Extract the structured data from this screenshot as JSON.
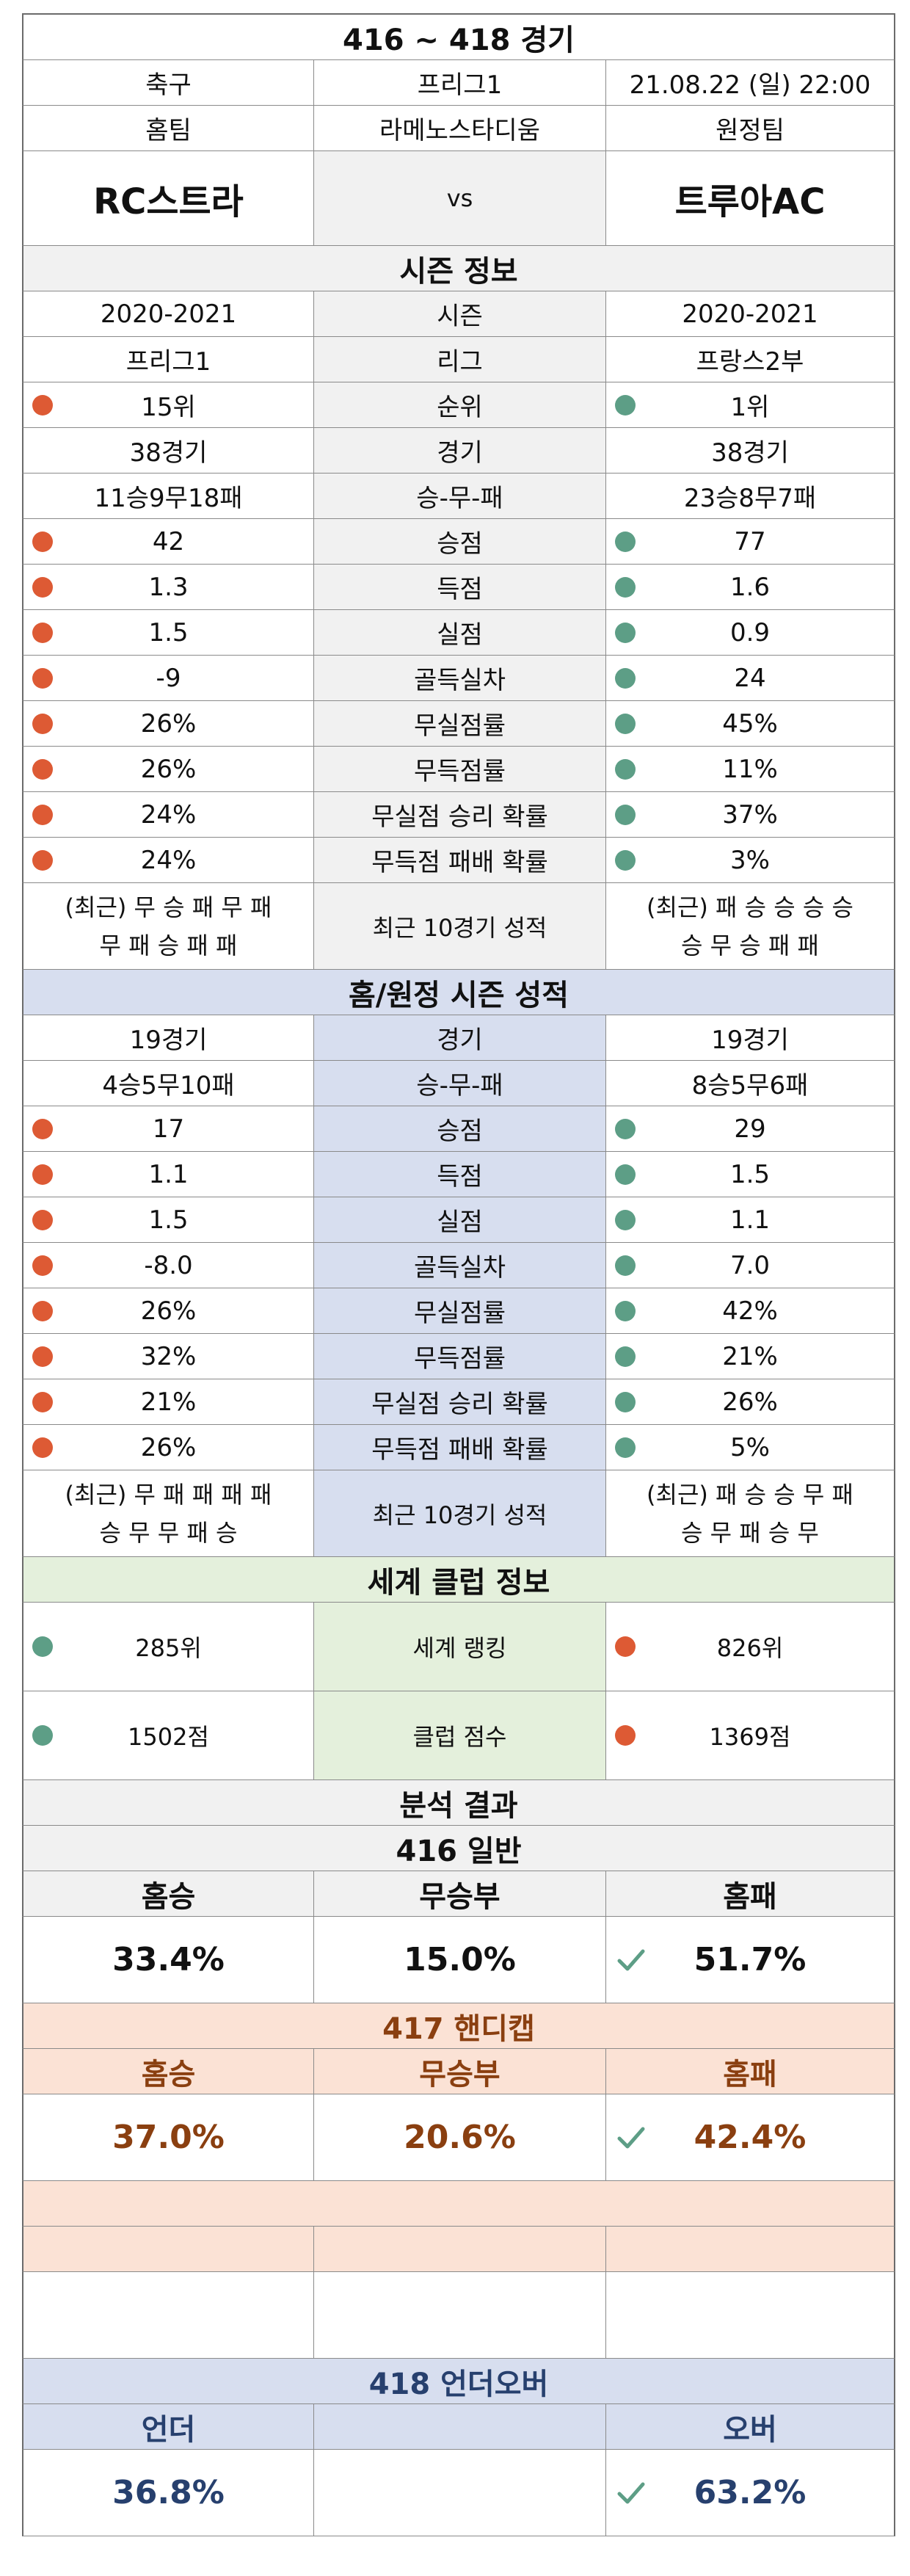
{
  "title": "416 ~ 418 경기",
  "match": {
    "sport": "축구",
    "league": "프리그1",
    "datetime": "21.08.22 (일) 22:00",
    "home_label": "홈팀",
    "venue": "라메노스타디움",
    "away_label": "원정팀",
    "home_team": "RC스트라",
    "vs": "vs",
    "away_team": "트루아AC"
  },
  "season": {
    "header": "시즌 정보",
    "rows": [
      {
        "label": "시즌",
        "home": "2020-2021",
        "away": "2020-2021",
        "dots": false
      },
      {
        "label": "리그",
        "home": "프리그1",
        "away": "프랑스2부",
        "dots": false
      },
      {
        "label": "순위",
        "home": "15위",
        "away": "1위",
        "dots": true
      },
      {
        "label": "경기",
        "home": "38경기",
        "away": "38경기",
        "dots": false
      },
      {
        "label": "승-무-패",
        "home": "11승9무18패",
        "away": "23승8무7패",
        "dots": false
      },
      {
        "label": "승점",
        "home": "42",
        "away": "77",
        "dots": true
      },
      {
        "label": "득점",
        "home": "1.3",
        "away": "1.6",
        "dots": true
      },
      {
        "label": "실점",
        "home": "1.5",
        "away": "0.9",
        "dots": true
      },
      {
        "label": "골득실차",
        "home": "-9",
        "away": "24",
        "dots": true
      },
      {
        "label": "무실점률",
        "home": "26%",
        "away": "45%",
        "dots": true
      },
      {
        "label": "무득점률",
        "home": "26%",
        "away": "11%",
        "dots": true
      },
      {
        "label": "무실점 승리 확률",
        "home": "24%",
        "away": "37%",
        "dots": true
      },
      {
        "label": "무득점 패배 확률",
        "home": "24%",
        "away": "3%",
        "dots": true
      }
    ],
    "recent": {
      "label": "최근 10경기 성적",
      "home_line1": "(최근) 무 승 패 무 패",
      "home_line2": "무 패 승 패 패",
      "away_line1": "(최근) 패 승 승 승 승",
      "away_line2": "승 무 승 패 패"
    }
  },
  "homeaway": {
    "header": "홈/원정 시즌 성적",
    "rows": [
      {
        "label": "경기",
        "home": "19경기",
        "away": "19경기",
        "dots": false
      },
      {
        "label": "승-무-패",
        "home": "4승5무10패",
        "away": "8승5무6패",
        "dots": false
      },
      {
        "label": "승점",
        "home": "17",
        "away": "29",
        "dots": true
      },
      {
        "label": "득점",
        "home": "1.1",
        "away": "1.5",
        "dots": true
      },
      {
        "label": "실점",
        "home": "1.5",
        "away": "1.1",
        "dots": true
      },
      {
        "label": "골득실차",
        "home": "-8.0",
        "away": "7.0",
        "dots": true
      },
      {
        "label": "무실점률",
        "home": "26%",
        "away": "42%",
        "dots": true
      },
      {
        "label": "무득점률",
        "home": "32%",
        "away": "21%",
        "dots": true
      },
      {
        "label": "무실점 승리 확률",
        "home": "21%",
        "away": "26%",
        "dots": true
      },
      {
        "label": "무득점 패배 확률",
        "home": "26%",
        "away": "5%",
        "dots": true
      }
    ],
    "recent": {
      "label": "최근 10경기 성적",
      "home_line1": "(최근) 무 패 패 패 패",
      "home_line2": "승 무 무 패 승",
      "away_line1": "(최근) 패 승 승 무 패",
      "away_line2": "승 무 패 승 무"
    }
  },
  "world": {
    "header": "세계 클럽 정보",
    "rank_label": "세계 랭킹",
    "home_rank": "285위",
    "away_rank": "826위",
    "score_label": "클럽 점수",
    "home_score": "1502점",
    "away_score": "1369점"
  },
  "analysis": {
    "header": "분석 결과",
    "general": {
      "header": "416 일반",
      "home_label": "홈승",
      "draw_label": "무승부",
      "away_label": "홈패",
      "home_value": "33.4%",
      "draw_value": "15.0%",
      "away_value": "51.7%"
    },
    "handicap": {
      "header": "417 핸디캡",
      "home_label": "홈승",
      "draw_label": "무승부",
      "away_label": "홈패",
      "home_value": "37.0%",
      "draw_value": "20.6%",
      "away_value": "42.4%"
    },
    "underover": {
      "header": "418 언더오버",
      "under_label": "언더",
      "over_label": "오버",
      "under_value": "36.8%",
      "over_value": "63.2%"
    }
  },
  "colors": {
    "home_dot": "#dd5a34",
    "away_dot": "#5d9e86",
    "check": "#5d9e86"
  }
}
